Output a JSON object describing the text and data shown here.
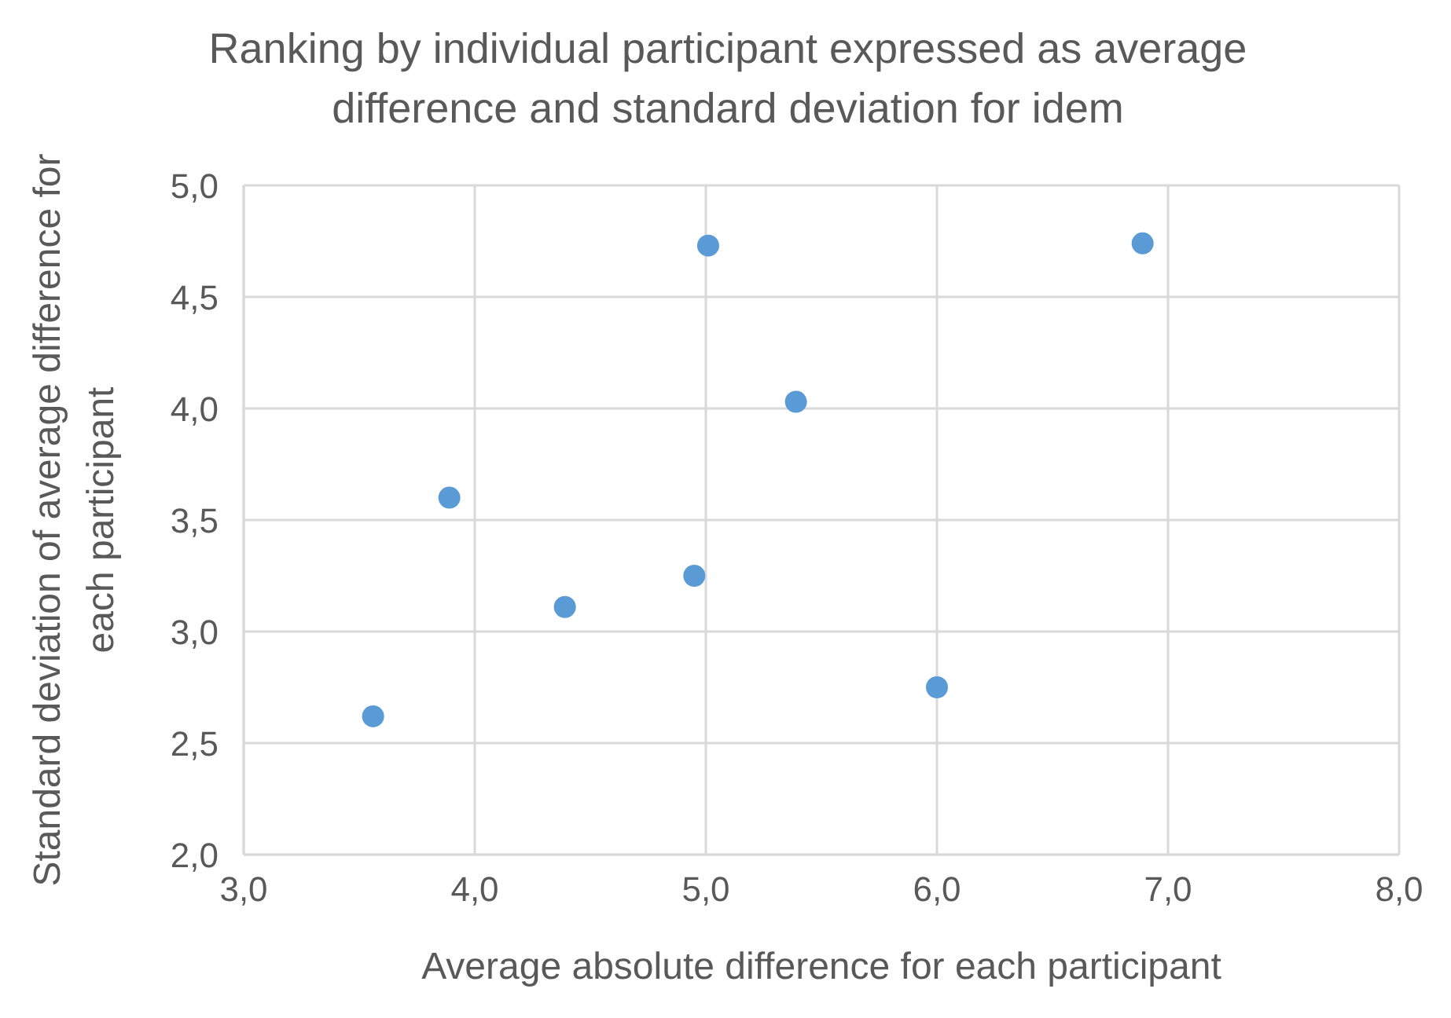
{
  "chart_data": {
    "type": "scatter",
    "title": "Ranking by individual participant expressed as average difference and standard deviation for idem",
    "xlabel": "Average absolute difference for each participant",
    "ylabel": "Standard deviation of average difference for each participant",
    "x": [
      3.56,
      3.89,
      4.39,
      4.95,
      5.01,
      5.39,
      6.0,
      6.89
    ],
    "series": [
      {
        "color": "#5b9bd5",
        "values": [
          2.62,
          3.6,
          3.11,
          3.25,
          4.73,
          4.03,
          2.75,
          4.74
        ]
      }
    ],
    "xlim": [
      3,
      8
    ],
    "xticks": [
      {
        "value": 3,
        "label": "3,0"
      },
      {
        "value": 4,
        "label": "4,0"
      },
      {
        "value": 5,
        "label": "5,0"
      },
      {
        "value": 6,
        "label": "6,0"
      },
      {
        "value": 7,
        "label": "7,0"
      },
      {
        "value": 8,
        "label": "8,0"
      }
    ],
    "ylim": [
      2,
      5
    ],
    "yticks": [
      {
        "value": 2,
        "label": "2,0"
      },
      {
        "value": 2.5,
        "label": "2,5"
      },
      {
        "value": 3,
        "label": "3,0"
      },
      {
        "value": 3.5,
        "label": "3,5"
      },
      {
        "value": 4,
        "label": "4,0"
      },
      {
        "value": 4.5,
        "label": "4,5"
      },
      {
        "value": 5,
        "label": "5,0"
      }
    ],
    "grid": true,
    "marker": "circle"
  }
}
